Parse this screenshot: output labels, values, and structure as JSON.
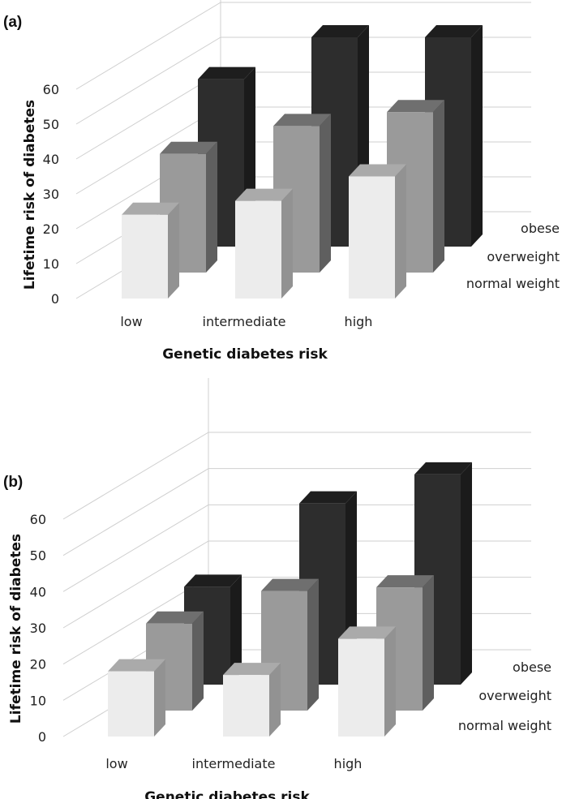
{
  "chart_data": [
    {
      "type": "bar",
      "panel_label": "(a)",
      "categories": [
        "low",
        "intermediate",
        "high"
      ],
      "series": [
        {
          "name": "normal weight",
          "values": [
            24,
            28,
            35
          ],
          "color": "#ececec"
        },
        {
          "name": "overweight",
          "values": [
            34,
            42,
            46
          ],
          "color": "#9a9a9a"
        },
        {
          "name": "obese",
          "values": [
            48,
            60,
            60
          ],
          "color": "#2d2d2d"
        }
      ],
      "yticks": [
        "0",
        "10",
        "20",
        "30",
        "40",
        "50",
        "60"
      ],
      "ylim": [
        0,
        60
      ],
      "xlabel": "Genetic diabetes risk",
      "ylabel": "Lifetime risk of diabetes"
    },
    {
      "type": "bar",
      "panel_label": "(b)",
      "categories": [
        "low",
        "intermediate",
        "high"
      ],
      "series": [
        {
          "name": "normal weight",
          "values": [
            18,
            17,
            27
          ],
          "color": "#ececec"
        },
        {
          "name": "overweight",
          "values": [
            24,
            33,
            34
          ],
          "color": "#9a9a9a"
        },
        {
          "name": "obese",
          "values": [
            27,
            50,
            58
          ],
          "color": "#2d2d2d"
        }
      ],
      "yticks": [
        "0",
        "10",
        "20",
        "30",
        "40",
        "50",
        "60"
      ],
      "ylim": [
        0,
        60
      ],
      "xlabel": "Genetic diabetes risk",
      "ylabel": "Lifetime risk of diabetes"
    }
  ]
}
